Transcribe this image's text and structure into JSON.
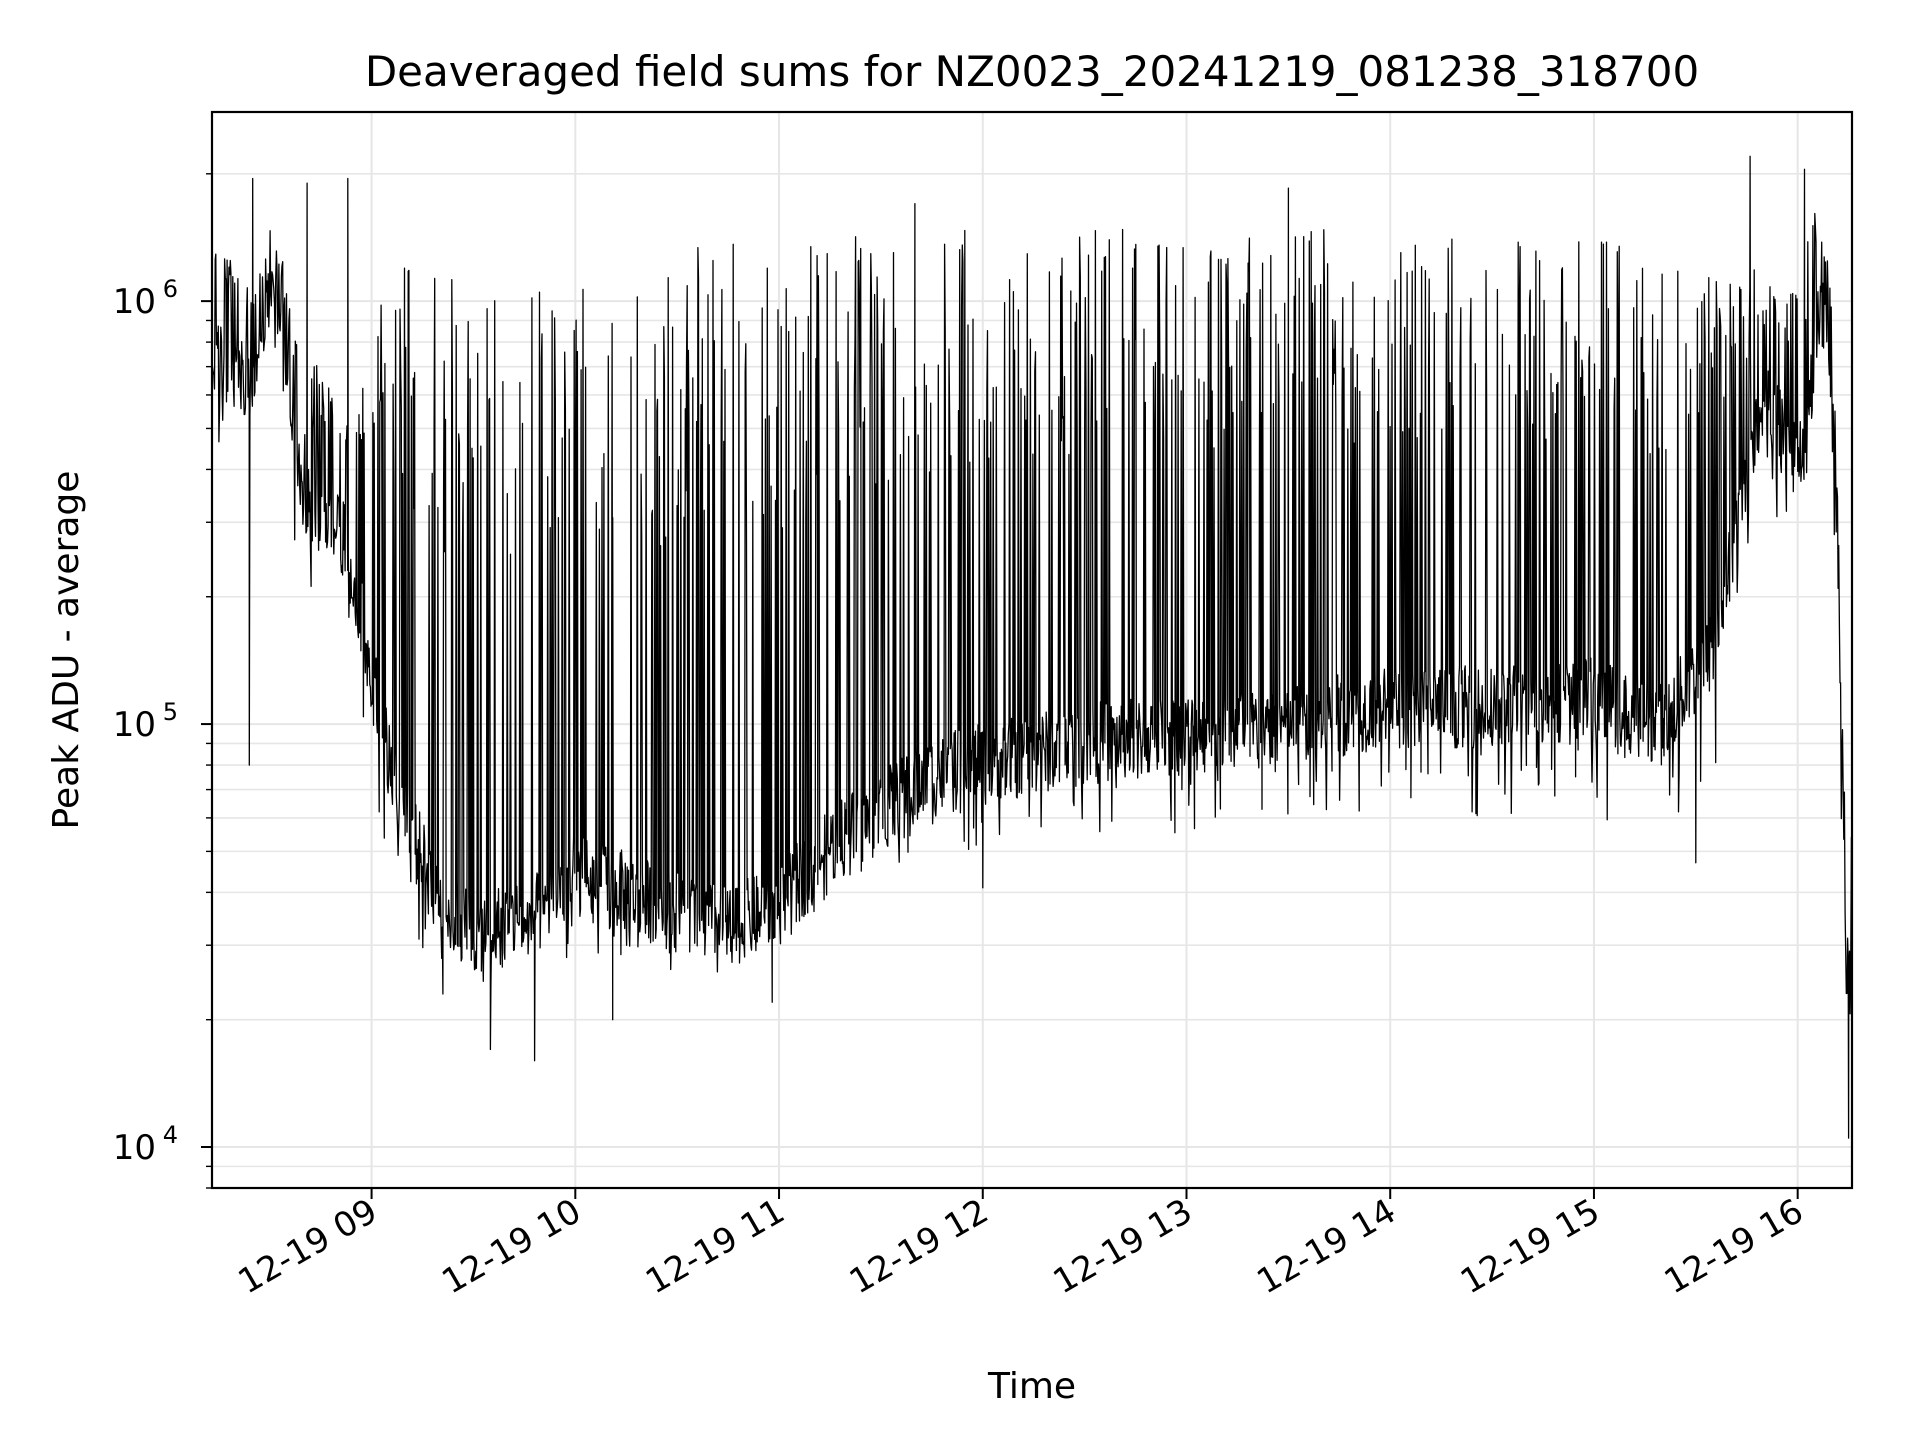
{
  "chart_data": {
    "type": "line",
    "title": "Deaveraged field sums for NZ0023_20241219_081238_318700",
    "xlabel": "Time",
    "ylabel": "Peak ADU - average",
    "yscale": "log",
    "ylim": [
      8000,
      2800000
    ],
    "xlim": [
      "2024-12-19 08:13",
      "2024-12-19 16:16"
    ],
    "grid": true,
    "x_ticks": [
      {
        "value": "2024-12-19 09:00",
        "label": "12-19 09"
      },
      {
        "value": "2024-12-19 10:00",
        "label": "12-19 10"
      },
      {
        "value": "2024-12-19 11:00",
        "label": "12-19 11"
      },
      {
        "value": "2024-12-19 12:00",
        "label": "12-19 12"
      },
      {
        "value": "2024-12-19 13:00",
        "label": "12-19 13"
      },
      {
        "value": "2024-12-19 14:00",
        "label": "12-19 14"
      },
      {
        "value": "2024-12-19 15:00",
        "label": "12-19 15"
      },
      {
        "value": "2024-12-19 16:00",
        "label": "12-19 16"
      }
    ],
    "y_ticks": [
      {
        "value": 10000,
        "base": "10",
        "exp": "4"
      },
      {
        "value": 100000,
        "base": "10",
        "exp": "5"
      },
      {
        "value": 1000000,
        "base": "10",
        "exp": "6"
      }
    ],
    "series": [
      {
        "color": "#000000",
        "envelope": {
          "time": [
            "2024-12-19 08:13",
            "2024-12-19 08:20",
            "2024-12-19 08:25",
            "2024-12-19 08:30",
            "2024-12-19 08:35",
            "2024-12-19 08:40",
            "2024-12-19 08:45",
            "2024-12-19 08:50",
            "2024-12-19 08:55",
            "2024-12-19 09:00",
            "2024-12-19 09:05",
            "2024-12-19 09:10",
            "2024-12-19 09:20",
            "2024-12-19 09:30",
            "2024-12-19 09:40",
            "2024-12-19 09:50",
            "2024-12-19 10:00",
            "2024-12-19 10:15",
            "2024-12-19 10:30",
            "2024-12-19 10:45",
            "2024-12-19 11:00",
            "2024-12-19 11:15",
            "2024-12-19 11:30",
            "2024-12-19 11:45",
            "2024-12-19 12:00",
            "2024-12-19 12:30",
            "2024-12-19 13:00",
            "2024-12-19 13:30",
            "2024-12-19 14:00",
            "2024-12-19 14:30",
            "2024-12-19 15:00",
            "2024-12-19 15:20",
            "2024-12-19 15:35",
            "2024-12-19 15:50",
            "2024-12-19 16:00",
            "2024-12-19 16:03",
            "2024-12-19 16:06",
            "2024-12-19 16:09",
            "2024-12-19 16:12",
            "2024-12-19 16:14",
            "2024-12-19 16:16"
          ],
          "baseline": [
            700000,
            700000,
            650000,
            1100000,
            700000,
            330000,
            320000,
            300000,
            220000,
            130000,
            85000,
            60000,
            38000,
            32000,
            34000,
            36000,
            44000,
            40000,
            36000,
            33000,
            37000,
            52000,
            62000,
            75000,
            80000,
            90000,
            95000,
            100000,
            110000,
            110000,
            115000,
            100000,
            150000,
            600000,
            420000,
            500000,
            1000000,
            900000,
            250000,
            30000,
            20000
          ],
          "spike_high": [
            1300000,
            1300000,
            1000000,
            1500000,
            1200000,
            600000,
            800000,
            600000,
            500000,
            800000,
            1200000,
            1300000,
            1200000,
            1100000,
            1200000,
            1100000,
            1100000,
            1200000,
            1300000,
            1400000,
            1400000,
            1450000,
            1500000,
            1500000,
            1500000,
            1500000,
            1500000,
            1500000,
            1500000,
            1450000,
            1450000,
            1300000,
            1300000,
            1200000,
            1100000,
            1500000,
            1700000,
            1400000,
            400000,
            60000,
            80000
          ],
          "spike_low": [
            450000,
            500000,
            450000,
            700000,
            400000,
            150000,
            150000,
            150000,
            150000,
            70000,
            40000,
            32000,
            26000,
            22000,
            22000,
            24000,
            28000,
            28000,
            26000,
            25000,
            28000,
            40000,
            45000,
            50000,
            50000,
            55000,
            55000,
            57000,
            60000,
            60000,
            60000,
            55000,
            55000,
            300000,
            320000,
            350000,
            700000,
            600000,
            150000,
            15000,
            11000
          ]
        },
        "peaks": [
          {
            "time": "2024-12-19 08:25",
            "value": 1950000
          },
          {
            "time": "2024-12-19 08:41",
            "value": 1900000
          },
          {
            "time": "2024-12-19 08:53",
            "value": 1950000
          },
          {
            "time": "2024-12-19 11:40",
            "value": 1700000
          },
          {
            "time": "2024-12-19 13:30",
            "value": 1850000
          },
          {
            "time": "2024-12-19 15:46",
            "value": 2200000
          },
          {
            "time": "2024-12-19 16:02",
            "value": 2050000
          }
        ],
        "troughs": [
          {
            "time": "2024-12-19 08:24",
            "value": 80000
          },
          {
            "time": "2024-12-19 09:21",
            "value": 23000
          },
          {
            "time": "2024-12-19 09:35",
            "value": 17000
          },
          {
            "time": "2024-12-19 09:48",
            "value": 16000
          },
          {
            "time": "2024-12-19 10:11",
            "value": 20000
          },
          {
            "time": "2024-12-19 10:58",
            "value": 22000
          },
          {
            "time": "2024-12-19 12:00",
            "value": 41000
          },
          {
            "time": "2024-12-19 15:30",
            "value": 47000
          },
          {
            "time": "2024-12-19 16:15",
            "value": 10500
          }
        ]
      }
    ]
  }
}
